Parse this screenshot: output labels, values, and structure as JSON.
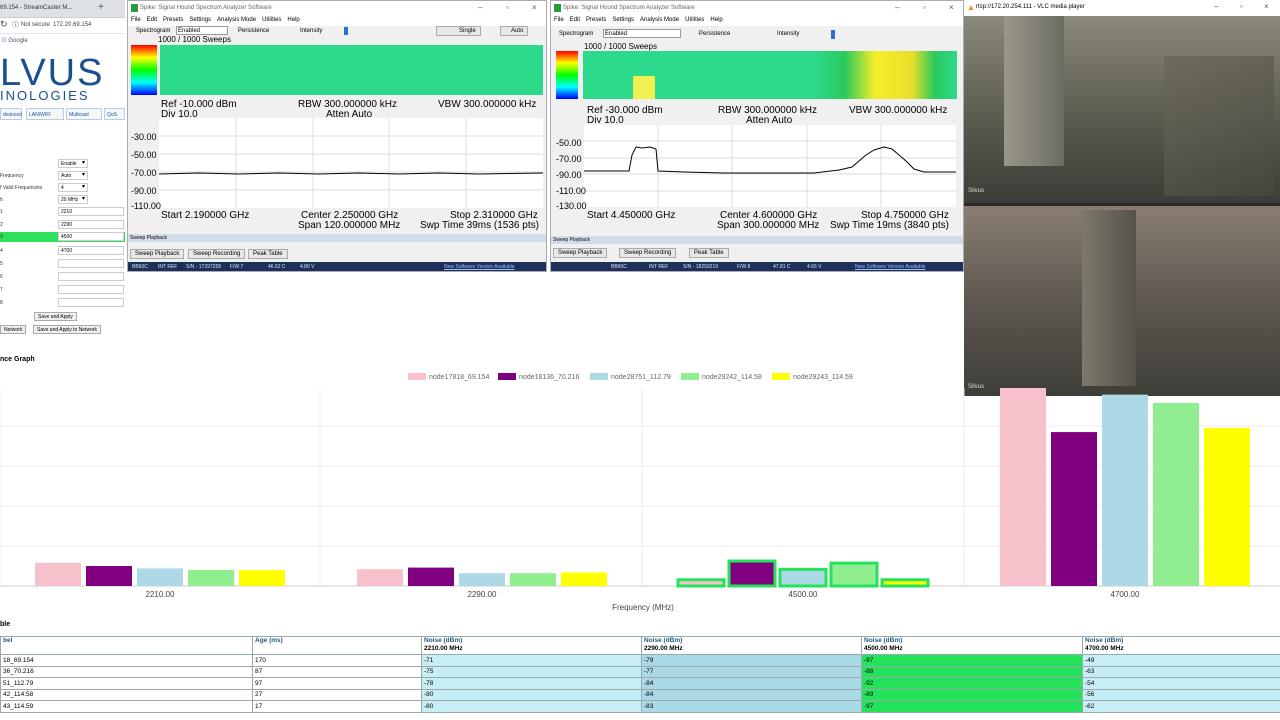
{
  "browser": {
    "tab_title": "69.154 - StreamCaster M...",
    "new_tab": "+",
    "security": "Not secure",
    "url": "172.20.69.154",
    "bookmark": "Google"
  },
  "logo": {
    "line1": "LVUS",
    "line2": "INOLOGIES"
  },
  "device_tabs": [
    "dvanced",
    "LAN/WIFI",
    "Multicast",
    "QoS"
  ],
  "form": {
    "rows": [
      {
        "label": "",
        "value": "Enable",
        "select": true
      },
      {
        "label": "Frequency",
        "value": "Auto",
        "select": true
      },
      {
        "label": "f Valid Frequencies",
        "value": "4",
        "select": true
      },
      {
        "label": "h",
        "value": "20 MHz",
        "select": true
      },
      {
        "label": "1",
        "value": "2210",
        "select": false
      },
      {
        "label": "2",
        "value": "2290",
        "select": false
      },
      {
        "label": "3",
        "value": "4500",
        "select": false,
        "highlight": true
      },
      {
        "label": "4",
        "value": "4700",
        "select": false
      },
      {
        "label": "5",
        "value": "",
        "select": false
      },
      {
        "label": "6",
        "value": "",
        "select": false
      },
      {
        "label": "7",
        "value": "",
        "select": false
      },
      {
        "label": "8",
        "value": "",
        "select": false
      }
    ],
    "save_apply": "Save and Apply",
    "network": "Network",
    "save_apply_network": "Save and Apply to Network"
  },
  "section_title": "nce Graph",
  "table_section_title": "ble",
  "spike": {
    "title": "Spike: Signal Hound Spectrum Analyzer Software",
    "menu": [
      "File",
      "Edit",
      "Presets",
      "Settings",
      "Analysis Mode",
      "Utilities",
      "Help"
    ],
    "toolbar": {
      "spectrogram": "Spectrogram",
      "enabled": "Enabled",
      "persistence": "Persistence",
      "intensity": "Intensity",
      "single": "Single",
      "auto": "Auto"
    },
    "sweep_playback_bar": "Sweep Playback",
    "buttons": [
      "Sweep Playback",
      "Sweep Recording",
      "Peak Table"
    ],
    "new_version": "New Software Version Available",
    "left": {
      "sweeps": "1000 / 1000 Sweeps",
      "ref": "Ref -10.000 dBm",
      "div": "Div 10.0",
      "rbw": "RBW 300.000000 kHz",
      "atten": "Atten Auto",
      "vbw": "VBW 300.000000 kHz",
      "ticks": [
        "-30.00",
        "-50.00",
        "-70.00",
        "-90.00",
        "-110.00"
      ],
      "start": "Start 2.190000 GHz",
      "center": "Center 2.250000 GHz",
      "stop": "Stop 2.310000 GHz",
      "span": "Span 120.000000 MHz",
      "swp": "Swp Time 39ms (1536 pts)",
      "status": [
        "BB60C",
        "INT REF",
        "S/N - 17297258",
        "F/W 7",
        "46.62 C",
        "4.80 V"
      ]
    },
    "right": {
      "sweeps": "1000 / 1000 Sweeps",
      "ref": "Ref -30.000 dBm",
      "div": "Div 10.0",
      "rbw": "RBW 300.000000 kHz",
      "atten": "Atten Auto",
      "vbw": "VBW 300.000000 kHz",
      "ticks": [
        "-50.00",
        "-70.00",
        "-90.00",
        "-110.00",
        "-130.00"
      ],
      "start": "Start 4.450000 GHz",
      "center": "Center 4.600000 GHz",
      "stop": "Stop 4.750000 GHz",
      "span": "Span 300.000000 MHz",
      "swp": "Swp Time 19ms (3840 pts)",
      "status": [
        "BB60C",
        "INT REF",
        "S/N - 18250219",
        "F/W 8",
        "47.81 C",
        "4.65 V"
      ]
    }
  },
  "vlc": {
    "title": "rtsp://172.20.254.111 - VLC media player",
    "watermark": "Silvus"
  },
  "colors": {
    "pink": "#f7c1cc",
    "purple": "#800080",
    "lightblue": "#add8e6",
    "lightgreen": "#90ee90",
    "yellow": "#ffff00",
    "green_hl": "#24e35b",
    "navy": "#1e2f5a"
  },
  "chart_data": {
    "type": "bar",
    "xlabel": "Frequency (MHz)",
    "categories": [
      "2210.00",
      "2290.00",
      "4500.00",
      "4700.00"
    ],
    "ylim": [
      0,
      100
    ],
    "series": [
      {
        "name": "node17818_69.154",
        "color": "#f7c1cc",
        "values": [
          71,
          79,
          97,
          49
        ]
      },
      {
        "name": "node18136_70.216",
        "color": "#800080",
        "values": [
          75,
          77,
          88,
          63
        ]
      },
      {
        "name": "node28751_112.79",
        "color": "#add8e6",
        "values": [
          78,
          84,
          92,
          54
        ]
      },
      {
        "name": "node29242_114.58",
        "color": "#90ee90",
        "values": [
          80,
          84,
          89,
          56
        ]
      },
      {
        "name": "node29243_114.59",
        "color": "#ffff00",
        "values": [
          80,
          83,
          97,
          62
        ]
      }
    ],
    "highlight_category": "4500.00"
  },
  "table": {
    "headers": [
      {
        "line1": "bel",
        "line2": ""
      },
      {
        "line1": "Age (ms)",
        "line2": ""
      },
      {
        "line1": "Noise (dBm)",
        "line2": "2210.00 MHz"
      },
      {
        "line1": "Noise (dBm)",
        "line2": "2290.00 MHz"
      },
      {
        "line1": "Noise (dBm)",
        "line2": "4500.00 MHz"
      },
      {
        "line1": "Noise (dBm)",
        "line2": "4700.00 MHz"
      }
    ],
    "rows": [
      [
        "18_69.154",
        "170",
        "-71",
        "-79",
        "-97",
        "-49"
      ],
      [
        "36_70.216",
        "87",
        "-75",
        "-77",
        "-88",
        "-63"
      ],
      [
        "51_112.79",
        "97",
        "-78",
        "-84",
        "-92",
        "-54"
      ],
      [
        "42_114.58",
        "27",
        "-80",
        "-84",
        "-89",
        "-56"
      ],
      [
        "43_114.59",
        "17",
        "-80",
        "-83",
        "-97",
        "-62"
      ]
    ]
  }
}
